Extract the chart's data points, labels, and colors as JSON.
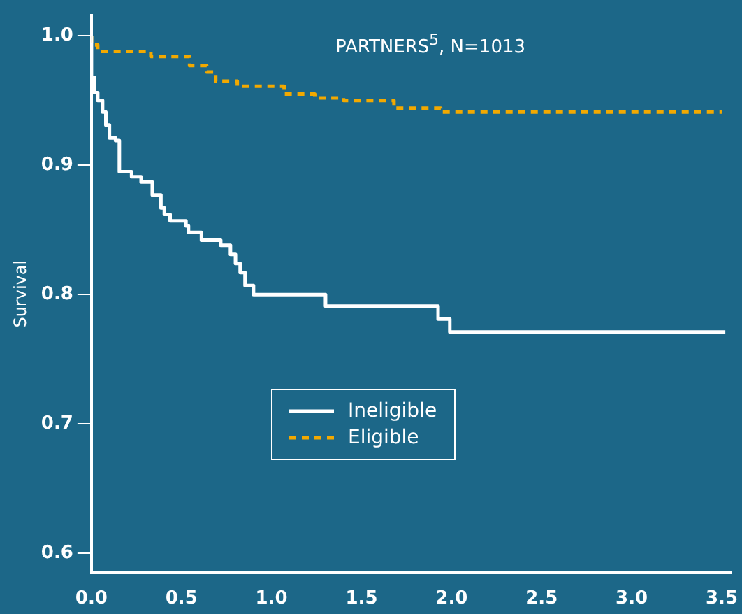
{
  "chart_data": {
    "type": "step",
    "title": "PARTNERS$^{5}$, N=1013",
    "ylabel": "Survival",
    "xlim": [
      0,
      3.55
    ],
    "ylim": [
      0.585,
      1.016
    ],
    "xticks": [
      {
        "value": 0,
        "label": "0.0"
      },
      0.5,
      {
        "value": 1,
        "label": "1.0"
      },
      1.5,
      {
        "value": 2,
        "label": "2.0"
      },
      2.5,
      {
        "value": 3,
        "label": "3.0"
      },
      3.5
    ],
    "yticks": [
      0.6,
      0.7,
      0.8,
      0.9,
      {
        "value": 1,
        "label": "1.0"
      }
    ],
    "grid": false,
    "legend": "bottom left",
    "series": [
      {
        "name": "Ineligible",
        "color": "#ffffff",
        "line_style": "solid",
        "x": [
          0,
          0.016,
          0.035,
          0.062,
          0.08,
          0.1,
          0.134,
          0.155,
          0.223,
          0.276,
          0.338,
          0.386,
          0.405,
          0.437,
          0.525,
          0.539,
          0.611,
          0.718,
          0.772,
          0.8,
          0.826,
          0.853,
          0.9,
          1.3,
          1.925,
          1.99,
          2.14,
          3.52
        ],
        "values": [
          1.0,
          0.968,
          0.956,
          0.95,
          0.941,
          0.931,
          0.921,
          0.919,
          0.895,
          0.891,
          0.887,
          0.877,
          0.867,
          0.862,
          0.857,
          0.853,
          0.848,
          0.842,
          0.838,
          0.831,
          0.824,
          0.817,
          0.807,
          0.8,
          0.791,
          0.781,
          0.771,
          0.771
        ]
      },
      {
        "name": "Eligible",
        "color": "#f2a900",
        "line_style": "dashed",
        "x": [
          0,
          0.035,
          0.33,
          0.545,
          0.64,
          0.69,
          0.81,
          1.07,
          1.24,
          1.4,
          1.68,
          1.94,
          2.3,
          3.5
        ],
        "values": [
          1.0,
          0.993,
          0.988,
          0.984,
          0.977,
          0.972,
          0.965,
          0.961,
          0.955,
          0.952,
          0.95,
          0.944,
          0.941,
          0.941
        ]
      }
    ]
  }
}
